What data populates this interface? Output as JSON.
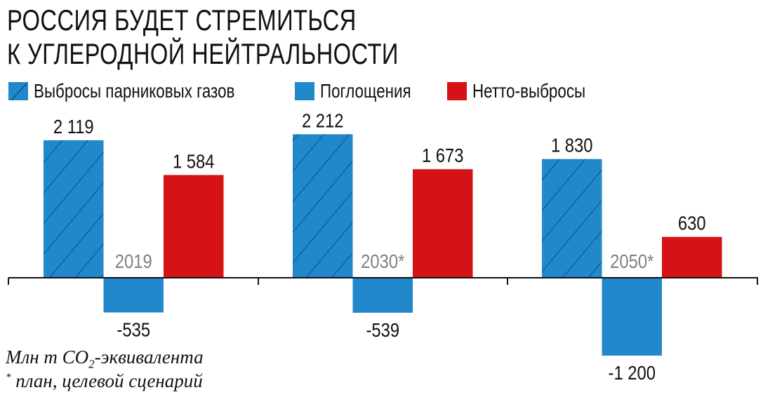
{
  "title_lines": [
    "РОССИЯ БУДЕТ СТРЕМИТЬСЯ",
    "К УГЛЕРОДНОЙ НЕЙТРАЛЬНОСТИ"
  ],
  "colors": {
    "emissions": "#2288cc",
    "absorption": "#2288cc",
    "net": "#d51317",
    "year_label": "#808080",
    "axis": "#111111"
  },
  "chart_data": {
    "type": "bar",
    "categories": [
      "2019",
      "2030*",
      "2050*"
    ],
    "series": [
      {
        "name": "Выбросы парниковых газов",
        "values": [
          2119,
          2212,
          1830
        ],
        "value_labels": [
          "2 119",
          "2 212",
          "1 830"
        ],
        "pattern": "hatched"
      },
      {
        "name": "Поглощения",
        "values": [
          -535,
          -539,
          -1200
        ],
        "value_labels": [
          "-535",
          "-539",
          "-1 200"
        ]
      },
      {
        "name": "Нетто-выбросы",
        "values": [
          1584,
          1673,
          630
        ],
        "value_labels": [
          "1 584",
          "1 673",
          "630"
        ]
      }
    ],
    "legend_position": "top-left",
    "grid": false,
    "ylim": [
      -1200,
      2212
    ]
  },
  "notes": {
    "unit_prefix": "Млн т CO",
    "unit_sub": "2",
    "unit_suffix": "-эквивалента",
    "asterisk": "*",
    "footnote": " план, целевой сценарий"
  }
}
